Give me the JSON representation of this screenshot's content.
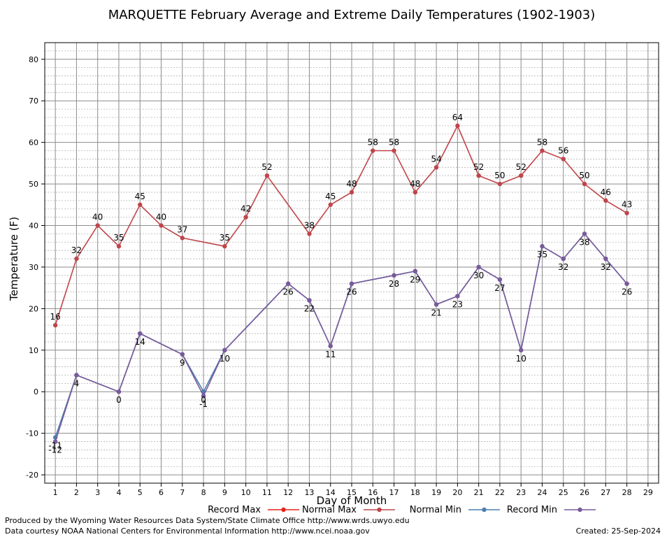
{
  "chart_data": {
    "type": "line",
    "title": "MARQUETTE February Average and Extreme Daily Temperatures (1902-1903)",
    "xlabel": "Day of Month",
    "ylabel": "Temperature (F)",
    "xlim": [
      0.5,
      29.5
    ],
    "ylim": [
      -22,
      84
    ],
    "x_ticks": [
      1,
      2,
      3,
      4,
      5,
      6,
      7,
      8,
      9,
      10,
      11,
      12,
      13,
      14,
      15,
      16,
      17,
      18,
      19,
      20,
      21,
      22,
      23,
      24,
      25,
      26,
      27,
      28,
      29
    ],
    "y_ticks": [
      -20,
      -10,
      0,
      10,
      20,
      30,
      40,
      50,
      60,
      70,
      80
    ],
    "grid": true,
    "legend_position": "bottom",
    "series": [
      {
        "name": "Record Max",
        "color": "#e8231d",
        "x": [],
        "values": []
      },
      {
        "name": "Normal Max",
        "color": "#c0454a",
        "x": [
          1,
          2,
          3,
          4,
          5,
          6,
          7,
          9,
          10,
          11,
          13,
          14,
          15,
          16,
          17,
          18,
          19,
          20,
          21,
          22,
          23,
          24,
          25,
          26,
          27,
          28
        ],
        "values": [
          16,
          32,
          40,
          35,
          45,
          40,
          37,
          35,
          42,
          52,
          38,
          45,
          48,
          58,
          58,
          48,
          54,
          64,
          52,
          50,
          52,
          58,
          56,
          50,
          46,
          43
        ],
        "labels": [
          "16",
          "32",
          "40",
          "35",
          "45",
          "40",
          "37",
          "35",
          "42",
          "52",
          "38",
          "45",
          "48",
          "58",
          "58",
          "48",
          "54",
          "64",
          "52",
          "50",
          "52",
          "58",
          "56",
          "50",
          "46",
          "43"
        ]
      },
      {
        "name": "Normal Min",
        "color": "#4a7fb0",
        "x": [
          1,
          2,
          4,
          5,
          7,
          8,
          9,
          12,
          13,
          14,
          15,
          17,
          18,
          19,
          20,
          21,
          22,
          23,
          24,
          25,
          26,
          27,
          28
        ],
        "values": [
          -11,
          4,
          0,
          14,
          9,
          0,
          10,
          26,
          22,
          11,
          26,
          28,
          29,
          21,
          23,
          30,
          27,
          10,
          35,
          32,
          38,
          32,
          26
        ],
        "labels": [
          "-11",
          "",
          "",
          "",
          "",
          "0",
          "",
          "",
          "",
          "",
          "",
          "",
          "",
          "",
          "",
          "",
          "",
          "",
          "",
          "",
          "",
          "",
          ""
        ]
      },
      {
        "name": "Record Min",
        "color": "#7a5a9a",
        "x": [
          1,
          2,
          4,
          5,
          7,
          8,
          9,
          12,
          13,
          14,
          15,
          17,
          18,
          19,
          20,
          21,
          22,
          23,
          24,
          25,
          26,
          27,
          28
        ],
        "values": [
          -12,
          4,
          0,
          14,
          9,
          -1,
          10,
          26,
          22,
          11,
          26,
          28,
          29,
          21,
          23,
          30,
          27,
          10,
          35,
          32,
          38,
          32,
          26
        ],
        "labels": [
          "-12",
          "4",
          "0",
          "14",
          "9",
          "-1",
          "10",
          "26",
          "22",
          "11",
          "26",
          "28",
          "29",
          "21",
          "23",
          "30",
          "27",
          "10",
          "35",
          "32",
          "38",
          "32",
          "26"
        ]
      }
    ]
  },
  "footer": {
    "produced_by": "Produced by the Wyoming Water Resources Data System/State Climate Office http://www.wrds.uwyo.edu",
    "courtesy": "Data courtesy NOAA National Centers for Environmental Information http://www.ncei.noaa.gov",
    "created": "Created: 25-Sep-2024"
  }
}
